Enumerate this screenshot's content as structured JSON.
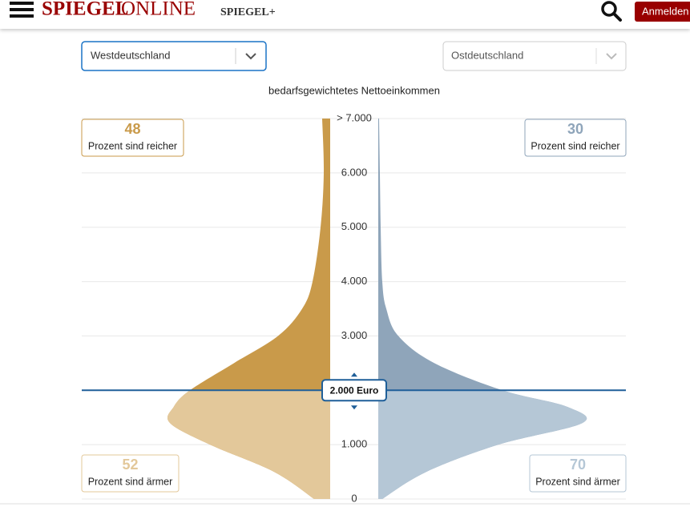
{
  "header": {
    "logo": "SPIEGEL",
    "logo_suffix": "ONLINE",
    "plus_brand": "SPIEGEL+",
    "login_button": "Anmelden"
  },
  "controls": {
    "left_select": "Westdeutschland",
    "right_select": "Ostdeutschland"
  },
  "chart_data": {
    "type": "violin",
    "title": "bedarfsgewichtetes Nettoeinkommen",
    "ylim": [
      0,
      7000
    ],
    "yticks": [
      {
        "value": 0,
        "label": "0"
      },
      {
        "value": 1000,
        "label": "1.000"
      },
      {
        "value": 2000,
        "label": "2.000"
      },
      {
        "value": 3000,
        "label": "3.000"
      },
      {
        "value": 4000,
        "label": "4.000"
      },
      {
        "value": 5000,
        "label": "5.000"
      },
      {
        "value": 6000,
        "label": "6.000"
      },
      {
        "value": 7000,
        "label": "> 7.000"
      }
    ],
    "grid": true,
    "x": [
      0,
      500,
      1000,
      1400,
      1700,
      2000,
      2500,
      3000,
      3500,
      4000,
      5000,
      6000,
      7000
    ],
    "threshold": {
      "value": 2000,
      "label": "2.000 Euro",
      "color": "#1f5f99"
    },
    "series": [
      {
        "name": "Westdeutschland",
        "side": "left",
        "color": "#c99a4a",
        "color_below": "#e3c89a",
        "values": [
          20,
          70,
          150,
          200,
          195,
          175,
          120,
          65,
          35,
          22,
          12,
          8,
          10
        ],
        "richer": {
          "value": 48,
          "label": "Prozent sind reicher"
        },
        "poorer": {
          "value": 52,
          "label": "Prozent sind ärmer"
        }
      },
      {
        "name": "Ostdeutschland",
        "side": "right",
        "color": "#8fa5ba",
        "color_below": "#b5c7d6",
        "values": [
          5,
          60,
          150,
          255,
          235,
          155,
          70,
          25,
          10,
          5,
          3,
          2,
          1
        ],
        "richer": {
          "value": 30,
          "label": "Prozent sind reicher"
        },
        "poorer": {
          "value": 70,
          "label": "Prozent sind ärmer"
        }
      }
    ]
  }
}
